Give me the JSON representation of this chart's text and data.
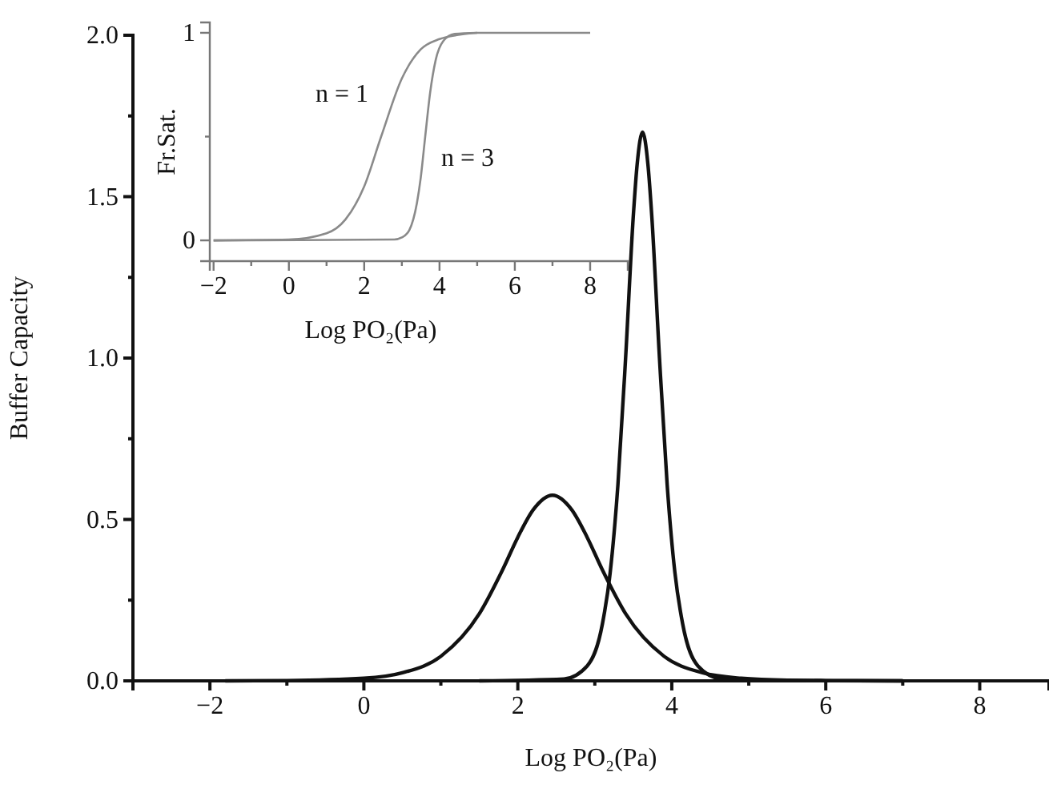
{
  "chart_data": [
    {
      "type": "line",
      "xlabel": "Log PO₂(Pa)",
      "ylabel": "Buffer Capacity",
      "xlim": [
        -3,
        8.9
      ],
      "ylim": [
        0,
        2
      ],
      "xticks": [
        -2,
        {
          "value": -1,
          "label": null
        },
        0,
        {
          "value": 1,
          "label": null
        },
        2,
        {
          "value": 3,
          "label": null
        },
        4,
        {
          "value": 5,
          "label": null
        },
        6,
        {
          "value": 7,
          "label": null
        },
        8
      ],
      "yticks": [
        {
          "value": 0,
          "label": "0.0"
        },
        {
          "value": 0.25,
          "label": null
        },
        0.5,
        {
          "value": 0.75,
          "label": null
        },
        {
          "value": 1,
          "label": "1.0"
        },
        {
          "value": 1.25,
          "label": null
        },
        1.5,
        {
          "value": 1.75,
          "label": null
        },
        {
          "value": 2,
          "label": "2.0"
        }
      ],
      "grid": false,
      "marker": "none",
      "line_style": "solid",
      "series": [
        {
          "color": "#111111",
          "x": [
            -1.8,
            -1,
            0,
            0.5,
            1,
            1.5,
            1.8,
            2,
            2.2,
            2.45,
            2.7,
            2.9,
            3.1,
            3.4,
            3.9,
            4.4,
            4.9,
            5.5,
            6,
            7
          ],
          "values": [
            0,
            0.001,
            0.008,
            0.025,
            0.076,
            0.208,
            0.343,
            0.445,
            0.53,
            0.575,
            0.53,
            0.445,
            0.343,
            0.208,
            0.076,
            0.025,
            0.008,
            0.002,
            0.001,
            0
          ]
        },
        {
          "color": "#111111",
          "x": [
            1.5,
            2.6,
            2.9,
            3.1,
            3.2,
            3.3,
            3.4,
            3.5,
            3.55,
            3.62,
            3.69,
            3.74,
            3.84,
            3.94,
            4.04,
            4.14,
            4.34,
            4.64,
            5,
            7
          ],
          "values": [
            0,
            0.006,
            0.046,
            0.178,
            0.336,
            0.607,
            1.0,
            1.44,
            1.6,
            1.7,
            1.6,
            1.44,
            1.0,
            0.607,
            0.336,
            0.178,
            0.046,
            0.006,
            0.001,
            0
          ]
        }
      ]
    },
    {
      "type": "line",
      "xlabel": "Log PO₂(Pa)",
      "ylabel": "Fr.Sat.",
      "xlim": [
        -2.1,
        9
      ],
      "ylim": [
        -0.1,
        1.05
      ],
      "xticks": [
        -2,
        {
          "value": -1,
          "label": null
        },
        0,
        {
          "value": 1,
          "label": null
        },
        2,
        {
          "value": 3,
          "label": null
        },
        4,
        {
          "value": 5,
          "label": null
        },
        6,
        {
          "value": 7,
          "label": null
        },
        8
      ],
      "yticks": [
        0,
        {
          "value": 0.5,
          "label": null
        },
        1
      ],
      "grid": false,
      "marker": "none",
      "line_style": "solid",
      "series": [
        {
          "name": "n = 1",
          "color": "#8a8a8a",
          "x": [
            -2,
            0,
            1,
            1.5,
            2,
            2.45,
            3,
            3.5,
            4,
            4.5,
            5,
            8
          ],
          "values": [
            0,
            0.004,
            0.034,
            0.1,
            0.26,
            0.5,
            0.78,
            0.92,
            0.97,
            0.99,
            1,
            1
          ]
        },
        {
          "name": "n = 3",
          "color": "#8a8a8a",
          "x": [
            -2,
            2.8,
            3,
            3.2,
            3.4,
            3.5,
            3.62,
            3.75,
            3.9,
            4.1,
            4.4,
            5
          ],
          "values": [
            0,
            0.004,
            0.014,
            0.05,
            0.18,
            0.3,
            0.5,
            0.71,
            0.87,
            0.96,
            0.995,
            1
          ]
        }
      ]
    }
  ]
}
